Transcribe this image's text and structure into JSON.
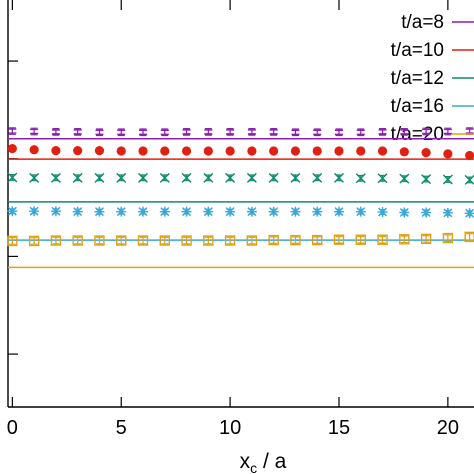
{
  "chart_data": {
    "type": "scatter",
    "title": "",
    "xlabel": "x",
    "xlabel_sub": "c",
    "xlabel_suffix": " / a",
    "ylabel": "",
    "xlim": [
      -0.2,
      21.2
    ],
    "ylim": [
      0.0,
      1.0
    ],
    "x_ticks": [
      0,
      5,
      10,
      15,
      20
    ],
    "x_tick_labels": [
      "0",
      "5",
      "10",
      "15",
      "20"
    ],
    "y_ticks": [
      0.13,
      0.37,
      0.61,
      0.85
    ],
    "grid": false,
    "legend_position": "top-right",
    "series": [
      {
        "name": "t/a=8",
        "color": "#8b1fb0",
        "marker": "double-bar",
        "x": [
          0,
          1,
          2,
          3,
          4,
          5,
          6,
          7,
          8,
          9,
          10,
          11,
          12,
          13,
          14,
          15,
          16,
          17,
          18,
          19,
          20,
          21
        ],
        "y": [
          0.678,
          0.677,
          0.676,
          0.676,
          0.675,
          0.675,
          0.675,
          0.675,
          0.676,
          0.676,
          0.676,
          0.676,
          0.676,
          0.675,
          0.675,
          0.675,
          0.675,
          0.676,
          0.676,
          0.677,
          0.677,
          0.678
        ],
        "yerr": 0.008,
        "line_y": 0.659
      },
      {
        "name": "t/a=10",
        "color": "#e02010",
        "marker": "filled-circle",
        "x": [
          0,
          1,
          2,
          3,
          4,
          5,
          6,
          7,
          8,
          9,
          10,
          11,
          12,
          13,
          14,
          15,
          16,
          17,
          18,
          19,
          20,
          21
        ],
        "y": [
          0.635,
          0.632,
          0.63,
          0.63,
          0.63,
          0.629,
          0.629,
          0.629,
          0.629,
          0.629,
          0.629,
          0.629,
          0.629,
          0.629,
          0.629,
          0.629,
          0.629,
          0.629,
          0.627,
          0.625,
          0.622,
          0.618
        ],
        "yerr": 0.004,
        "line_y": 0.609
      },
      {
        "name": "t/a=12",
        "color": "#0e8b6b",
        "marker": "cross",
        "x": [
          0,
          1,
          2,
          3,
          4,
          5,
          6,
          7,
          8,
          9,
          10,
          11,
          12,
          13,
          14,
          15,
          16,
          17,
          18,
          19,
          20,
          21
        ],
        "y": [
          0.564,
          0.563,
          0.563,
          0.563,
          0.563,
          0.563,
          0.563,
          0.563,
          0.563,
          0.563,
          0.563,
          0.563,
          0.563,
          0.563,
          0.563,
          0.563,
          0.562,
          0.562,
          0.561,
          0.56,
          0.559,
          0.558
        ],
        "yerr": 0.007,
        "line_y": 0.504
      },
      {
        "name": "t/a=16",
        "color": "#38a8d8",
        "marker": "star",
        "x": [
          0,
          1,
          2,
          3,
          4,
          5,
          6,
          7,
          8,
          9,
          10,
          11,
          12,
          13,
          14,
          15,
          16,
          17,
          18,
          19,
          20,
          21
        ],
        "y": [
          0.481,
          0.481,
          0.481,
          0.48,
          0.48,
          0.48,
          0.48,
          0.48,
          0.48,
          0.48,
          0.48,
          0.48,
          0.48,
          0.48,
          0.48,
          0.48,
          0.48,
          0.479,
          0.478,
          0.478,
          0.477,
          0.476
        ],
        "yerr": 0.006,
        "line_y": 0.41
      },
      {
        "name": "t/a=20",
        "color": "#e0a010",
        "marker": "open-square",
        "x": [
          0,
          1,
          2,
          3,
          4,
          5,
          6,
          7,
          8,
          9,
          10,
          11,
          12,
          13,
          14,
          15,
          16,
          17,
          18,
          19,
          20,
          21
        ],
        "y": [
          0.408,
          0.408,
          0.409,
          0.409,
          0.409,
          0.409,
          0.409,
          0.409,
          0.409,
          0.409,
          0.409,
          0.409,
          0.41,
          0.41,
          0.41,
          0.411,
          0.411,
          0.411,
          0.412,
          0.413,
          0.415,
          0.418
        ],
        "yerr": 0.008,
        "line_y": 0.343
      }
    ]
  }
}
